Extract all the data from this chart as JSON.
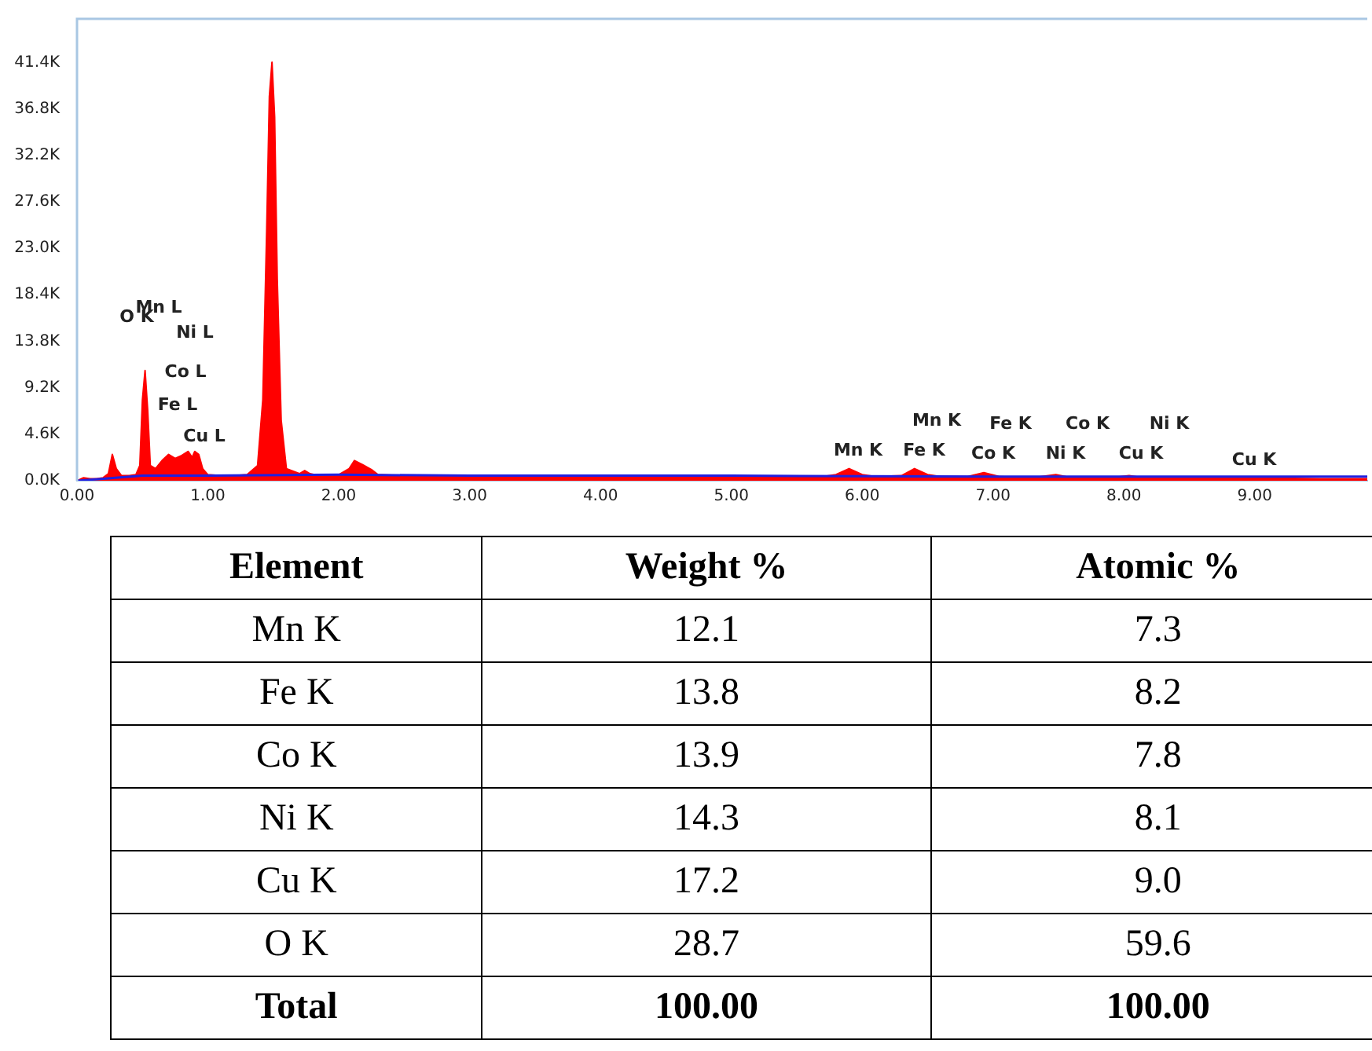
{
  "chart_data": [
    {
      "type": "area",
      "series": [
        {
          "color": "#ff0000",
          "x": [
            0,
            0.05,
            0.1,
            0.15,
            0.2,
            0.24,
            0.27,
            0.3,
            0.34,
            0.4,
            0.45,
            0.48,
            0.5,
            0.52,
            0.54,
            0.56,
            0.6,
            0.65,
            0.7,
            0.75,
            0.8,
            0.85,
            0.88,
            0.9,
            0.93,
            0.96,
            1.0,
            1.1,
            1.2,
            1.3,
            1.38,
            1.42,
            1.45,
            1.47,
            1.49,
            1.51,
            1.53,
            1.56,
            1.6,
            1.7,
            1.74,
            1.78,
            1.85,
            2.0,
            2.08,
            2.12,
            2.18,
            2.25,
            2.3,
            2.5,
            3,
            4,
            5,
            5.7,
            5.8,
            5.9,
            6.0,
            6.1,
            6.3,
            6.4,
            6.5,
            6.6,
            6.8,
            6.93,
            7.05,
            7.3,
            7.48,
            7.6,
            7.9,
            8.04,
            8.15,
            8.5,
            9.0,
            9.5,
            9.86
          ],
          "values": [
            0,
            300,
            200,
            200,
            300,
            700,
            2600,
            1200,
            500,
            500,
            600,
            1500,
            8000,
            10900,
            7000,
            1500,
            1200,
            2000,
            2600,
            2200,
            2500,
            2900,
            2300,
            2900,
            2600,
            1200,
            600,
            500,
            500,
            600,
            1500,
            8000,
            25000,
            38000,
            41400,
            36000,
            20000,
            6000,
            1200,
            700,
            1000,
            700,
            500,
            600,
            1200,
            2000,
            1600,
            1100,
            600,
            500,
            400,
            400,
            400,
            400,
            600,
            1200,
            600,
            400,
            500,
            1200,
            600,
            400,
            400,
            800,
            400,
            300,
            600,
            300,
            300,
            500,
            300,
            300,
            300,
            200,
            200
          ]
        },
        {
          "type": "line",
          "color": "#2020e0",
          "x": [
            0,
            0.2,
            0.5,
            1.0,
            2,
            3,
            5,
            7,
            9.86
          ],
          "values": [
            0,
            200,
            500,
            500,
            600,
            500,
            500,
            400,
            400
          ]
        }
      ],
      "xlim": [
        0,
        9.86
      ],
      "ylim": [
        0,
        45700
      ],
      "xticks": [
        {
          "value": 0,
          "label": "0.00"
        },
        {
          "value": 1,
          "label": "1.00"
        },
        {
          "value": 2,
          "label": "2.00"
        },
        {
          "value": 3,
          "label": "3.00"
        },
        {
          "value": 4,
          "label": "4.00"
        },
        {
          "value": 5,
          "label": "5.00"
        },
        {
          "value": 6,
          "label": "6.00"
        },
        {
          "value": 7,
          "label": "7.00"
        },
        {
          "value": 8,
          "label": "8.00"
        },
        {
          "value": 9,
          "label": "9.00"
        }
      ],
      "yticks": [
        {
          "value": 0,
          "label": "0.0K"
        },
        {
          "value": 4600,
          "label": "4.6K"
        },
        {
          "value": 9200,
          "label": "9.2K"
        },
        {
          "value": 13800,
          "label": "13.8K"
        },
        {
          "value": 18400,
          "label": "18.4K"
        },
        {
          "value": 23000,
          "label": "23.0K"
        },
        {
          "value": 27600,
          "label": "27.6K"
        },
        {
          "value": 32200,
          "label": "32.2K"
        },
        {
          "value": 36800,
          "label": "36.8K"
        },
        {
          "value": 41400,
          "label": "41.4K"
        }
      ],
      "grid": false,
      "annotations": [
        "O K",
        "Mn L",
        "Ni L",
        "Co L",
        "Fe L",
        "Cu L",
        "Mn K",
        "Mn K",
        "Fe K",
        "Fe K",
        "Co K",
        "Co K",
        "Ni K",
        "Ni K",
        "Cu K",
        "Cu K"
      ]
    },
    {
      "type": "other",
      "categories": [
        "Element",
        "Weight %",
        "Atomic %"
      ],
      "annotations": [
        "Mn K",
        "12.1",
        "7.3",
        "Fe K",
        "13.8",
        "8.2",
        "Co K",
        "13.9",
        "7.8",
        "Ni K",
        "14.3",
        "8.1",
        "Cu K",
        "17.2",
        "9.0",
        "O K",
        "28.7",
        "59.6",
        "Total",
        "100.00",
        "100.00"
      ]
    }
  ]
}
